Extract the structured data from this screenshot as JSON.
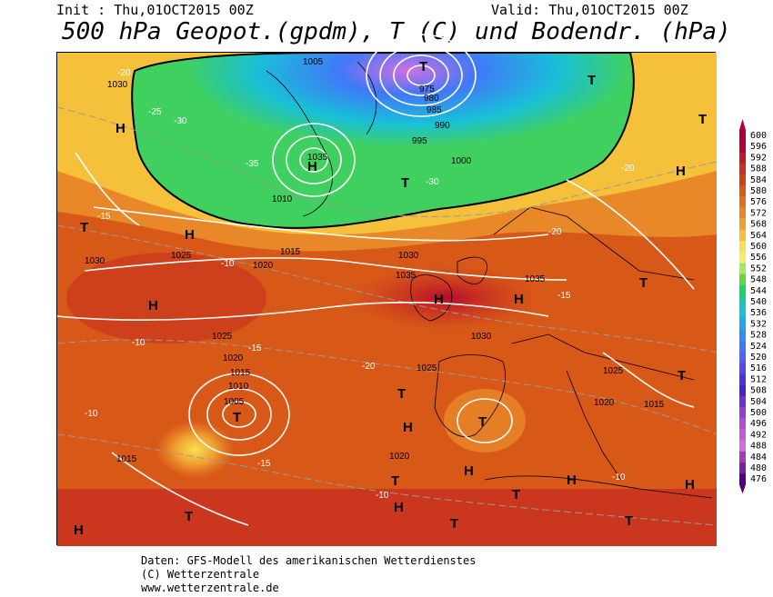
{
  "header": {
    "init": "Init : Thu,01OCT2015 00Z",
    "valid": "Valid: Thu,01OCT2015 00Z",
    "title": "500 hPa Geopot.(gpdm), T (C) und Bodendr. (hPa)"
  },
  "legend": {
    "values": [
      "600",
      "596",
      "592",
      "588",
      "584",
      "580",
      "576",
      "572",
      "568",
      "564",
      "560",
      "556",
      "552",
      "548",
      "544",
      "540",
      "536",
      "532",
      "528",
      "524",
      "520",
      "516",
      "512",
      "508",
      "504",
      "500",
      "496",
      "492",
      "488",
      "484",
      "480",
      "476"
    ],
    "colors": [
      "#b0003c",
      "#b8003a",
      "#c01828",
      "#c83020",
      "#d04018",
      "#d85818",
      "#e07020",
      "#e88828",
      "#f0a030",
      "#f5c03a",
      "#f8e050",
      "#f0f070",
      "#a8e860",
      "#60d840",
      "#20d068",
      "#18c8a8",
      "#18c0d8",
      "#20a8e8",
      "#3090f0",
      "#4078f8",
      "#5060f8",
      "#5048f0",
      "#5030e0",
      "#4820d0",
      "#7030d0",
      "#9040d0",
      "#b050d0",
      "#c060d0",
      "#d070e0",
      "#a040b0",
      "#7820a0",
      "#500080"
    ]
  },
  "map": {
    "pressure_labels": [
      "1030",
      "1025",
      "1020",
      "1015",
      "1010",
      "1005",
      "1000",
      "995",
      "990",
      "985",
      "980",
      "975",
      "1035"
    ],
    "temperature_labels": [
      "-25",
      "-20",
      "-15",
      "-10",
      "-30",
      "-35"
    ],
    "centers": {
      "high": "H",
      "low": "T"
    }
  },
  "footer": {
    "line1": "Daten: GFS-Modell des amerikanischen Wetterdienstes",
    "line2": "(C) Wetterzentrale",
    "line3": "www.wetterzentrale.de"
  }
}
